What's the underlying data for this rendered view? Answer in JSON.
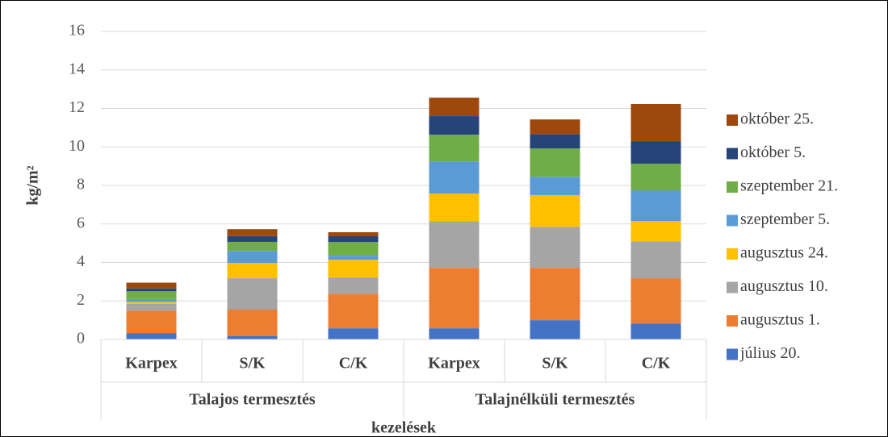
{
  "chart_data": {
    "type": "stacked_bar",
    "y_label": "kg/m²",
    "x_label": "kezelések",
    "groups": [
      {
        "name": "Talajos termesztés",
        "categories": [
          "Karpex",
          "S/K",
          "C/K"
        ]
      },
      {
        "name": "Talajnélküli termesztés",
        "categories": [
          "Karpex",
          "S/K",
          "C/K"
        ]
      }
    ],
    "series": [
      {
        "name": "július 20.",
        "color": "#4472c4",
        "values": [
          0.33,
          0.17,
          0.58,
          0.58,
          1.0,
          0.83
        ]
      },
      {
        "name": "augusztus 1.",
        "color": "#ed7d31",
        "values": [
          1.17,
          1.38,
          1.8,
          3.14,
          2.72,
          2.35
        ]
      },
      {
        "name": "augusztus 10.",
        "color": "#a5a5a5",
        "values": [
          0.35,
          1.63,
          0.84,
          2.43,
          2.13,
          1.92
        ]
      },
      {
        "name": "augusztus 24.",
        "color": "#ffc000",
        "values": [
          0.1,
          0.79,
          0.92,
          1.43,
          1.65,
          1.05
        ]
      },
      {
        "name": "szeptember 5.",
        "color": "#5b9bd5",
        "values": [
          0.15,
          0.63,
          0.21,
          1.67,
          0.95,
          1.6
        ]
      },
      {
        "name": "szeptember 21.",
        "color": "#70ad47",
        "values": [
          0.4,
          0.47,
          0.71,
          1.39,
          1.47,
          1.38
        ]
      },
      {
        "name": "október 5.",
        "color": "#264478",
        "values": [
          0.15,
          0.3,
          0.3,
          0.96,
          0.75,
          1.17
        ]
      },
      {
        "name": "október 25.",
        "color": "#9e480e",
        "values": [
          0.3,
          0.36,
          0.21,
          0.96,
          0.76,
          1.93
        ]
      }
    ],
    "ylim": [
      0,
      16
    ],
    "yticks": [
      0,
      2,
      4,
      6,
      8,
      10,
      12,
      14,
      16
    ],
    "grid": true,
    "legend": "right"
  }
}
